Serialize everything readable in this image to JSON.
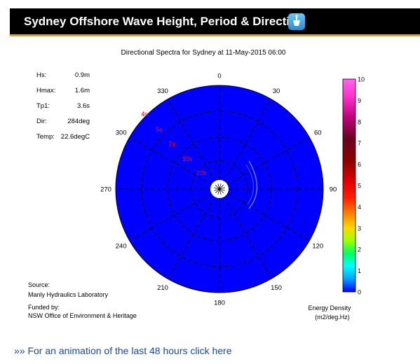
{
  "header": {
    "title": "Sydney Offshore Wave Height, Period & Direction",
    "icon": "buoy-icon"
  },
  "chart_data": {
    "type": "polar",
    "title": "Directional Spectra for Sydney at 11-May-2015 06:00",
    "stats": [
      {
        "label": "Hs:",
        "value": "0.9m"
      },
      {
        "label": "Hmax:",
        "value": "1.6m"
      },
      {
        "label": "Tp1:",
        "value": "3.6s"
      },
      {
        "label": "Dir:",
        "value": "284deg"
      },
      {
        "label": "Temp:",
        "value": "22.6degC"
      }
    ],
    "direction_labels": [
      "0",
      "30",
      "60",
      "90",
      "120",
      "150",
      "180",
      "210",
      "240",
      "270",
      "300",
      "330"
    ],
    "period_labels": [
      "4s",
      "5s",
      "7s",
      "10s",
      "20s"
    ],
    "colorbar": {
      "ticks": [
        "0",
        "1",
        "2",
        "3",
        "4",
        "5",
        "6",
        "7",
        "8",
        "9",
        "10"
      ],
      "min": 0,
      "max": 10,
      "title_line1": "Energy Density",
      "title_line2": "(m2/deg.Hz)"
    },
    "source_label": "Source:",
    "source_value": "Manly Hydraulics Laboratory",
    "funded_label": "Funded by:",
    "funded_value": "NSW Office of Environment & Heritage",
    "background_color": "#0000ff"
  },
  "footer": {
    "arrows": "»»",
    "link_text": " For an animation of the last 48 hours click here"
  }
}
